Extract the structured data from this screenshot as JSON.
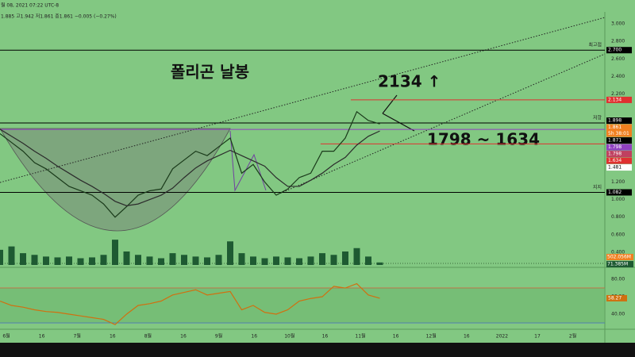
{
  "chart_data": {
    "type": "line",
    "header": {
      "date": "월 08, 2021 07:22 UTC-8",
      "ohlc": "1.885 고1.942 저1.861 종1.861 −0.005 (−0.27%)"
    },
    "title": "폴리곤 날봉",
    "annotations": [
      {
        "text": "2134 ↑"
      },
      {
        "text": "1798 ~ 1634"
      }
    ],
    "ylim": [
      0.247,
      3.135
    ],
    "yticks": [
      {
        "value": 0.4,
        "label": "0.400"
      },
      {
        "value": 0.6,
        "label": "0.600"
      },
      {
        "value": 0.8,
        "label": "0.800"
      },
      {
        "value": 1.0,
        "label": "1.000"
      },
      {
        "value": 1.2,
        "label": "1.200"
      },
      {
        "value": 2.2,
        "label": "2.200"
      },
      {
        "value": 2.4,
        "label": "2.400"
      },
      {
        "value": 2.6,
        "label": "2.600"
      },
      {
        "value": 2.8,
        "label": "2.800"
      },
      {
        "value": 3.0,
        "label": "3.000"
      }
    ],
    "x_labels": [
      "6월",
      "16",
      "7월",
      "16",
      "8월",
      "16",
      "9월",
      "16",
      "10월",
      "16",
      "11월",
      "16",
      "12월",
      "16",
      "2022",
      "17",
      "2월"
    ],
    "series": [
      {
        "name": "price",
        "color": "#1a3a1a",
        "values": [
          1.75,
          1.65,
          1.55,
          1.42,
          1.35,
          1.25,
          1.15,
          1.1,
          1.05,
          0.95,
          0.8,
          0.92,
          1.05,
          1.1,
          1.12,
          1.35,
          1.45,
          1.55,
          1.5,
          1.6,
          1.7,
          1.3,
          1.4,
          1.2,
          1.05,
          1.12,
          1.25,
          1.3,
          1.55,
          1.55,
          1.7,
          2.0,
          1.9,
          1.861
        ]
      },
      {
        "name": "ma",
        "color": "#2b2b2b",
        "values": [
          1.8,
          1.72,
          1.64,
          1.55,
          1.47,
          1.38,
          1.3,
          1.22,
          1.15,
          1.07,
          0.98,
          0.93,
          0.95,
          1.0,
          1.05,
          1.13,
          1.25,
          1.36,
          1.44,
          1.5,
          1.56,
          1.5,
          1.44,
          1.38,
          1.25,
          1.15,
          1.15,
          1.22,
          1.3,
          1.4,
          1.48,
          1.62,
          1.72,
          1.78
        ]
      }
    ],
    "levels": [
      {
        "name": "최고점",
        "value": 2.7,
        "label": "2.700",
        "color": "#000000",
        "from": 0
      },
      {
        "value": 2.134,
        "label": "2.134",
        "color": "#e03030",
        "from": 0.58
      },
      {
        "value": 1.898,
        "label": "1.898",
        "color": "#000000"
      },
      {
        "value": 1.861,
        "label": "1.861",
        "color": "#f08020",
        "countdown": "5h 38:01"
      },
      {
        "name": "저항",
        "value": 1.871,
        "label": "1.871",
        "color": "#000000",
        "from": 0
      },
      {
        "value": 1.798,
        "label": "1.798",
        "color": "#9040c0",
        "from": 0
      },
      {
        "value": 1.798,
        "label": "1.798",
        "color": "#c04060"
      },
      {
        "value": 1.634,
        "label": "1.634",
        "color": "#e03030",
        "from": 0.53
      },
      {
        "value": 1.481,
        "label": "1.481",
        "color": "#ffffff"
      },
      {
        "name": "지지",
        "value": 1.082,
        "label": "1.082",
        "color": "#000000",
        "from": 0
      }
    ],
    "volume": {
      "ylim": [
        0,
        1600
      ],
      "color": "#1e5a32",
      "values": [
        900,
        1100,
        700,
        600,
        500,
        450,
        500,
        400,
        450,
        600,
        1500,
        800,
        600,
        500,
        400,
        700,
        600,
        500,
        450,
        600,
        1400,
        700,
        500,
        400,
        500,
        450,
        400,
        500,
        700,
        600,
        800,
        1000,
        500,
        150
      ],
      "labels": [
        {
          "value": 502.056,
          "label": "502.056M",
          "color": "#f08020"
        },
        {
          "value": 71.385,
          "label": "71.385M",
          "color": "#1e5a32"
        }
      ]
    },
    "rsi": {
      "ylim": [
        9,
        91
      ],
      "color": "#d07010",
      "yticks": [
        {
          "value": 40,
          "label": "40.00"
        },
        {
          "value": 60,
          "label": "60.00"
        },
        {
          "value": 80,
          "label": "80.00"
        }
      ],
      "bands": [
        {
          "value": 70,
          "color": "#e05030"
        },
        {
          "value": 30,
          "color": "#4060d0"
        }
      ],
      "values": [
        55,
        50,
        48,
        45,
        43,
        42,
        40,
        38,
        36,
        34,
        28,
        40,
        50,
        52,
        55,
        62,
        65,
        68,
        62,
        64,
        66,
        45,
        50,
        42,
        40,
        45,
        55,
        58,
        60,
        72,
        70,
        75,
        62,
        58.27
      ],
      "last_label": "58.27"
    }
  }
}
